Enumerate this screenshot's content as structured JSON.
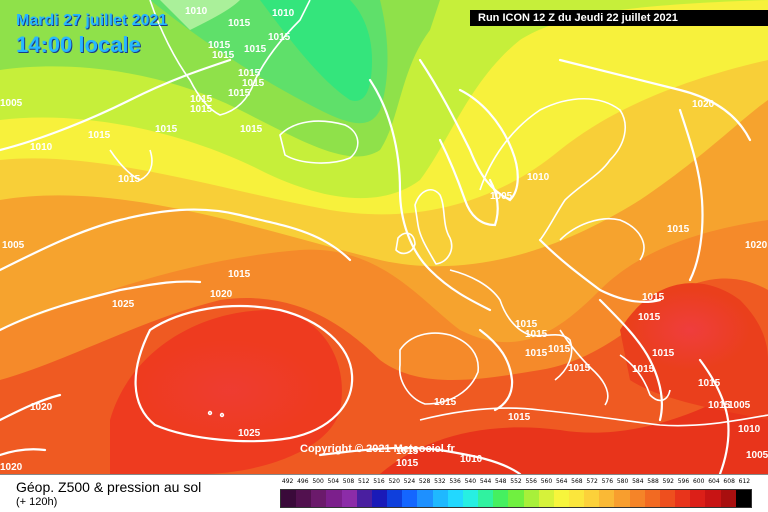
{
  "title": {
    "date": "Mardi 27 juillet 2021",
    "time": "14:00 locale"
  },
  "run_info": "Run ICON 12 Z du Jeudi 22 juillet 2021",
  "copyright": "Copyright © 2021 Meteociel.fr",
  "footer": {
    "title": "Géop. Z500 & pression au sol",
    "subtitle": "(+ 120h)"
  },
  "legend_scale": {
    "labels": [
      "492",
      "496",
      "500",
      "504",
      "508",
      "512",
      "516",
      "520",
      "524",
      "528",
      "532",
      "536",
      "540",
      "544",
      "548",
      "552",
      "556",
      "560",
      "564",
      "568",
      "572",
      "576",
      "580",
      "584",
      "588",
      "592",
      "596",
      "600",
      "604",
      "608",
      "612"
    ],
    "colors": [
      "#3a0a3a",
      "#52114f",
      "#6b1a6b",
      "#7c1f8c",
      "#8c2ca8",
      "#4a1fa0",
      "#1a1ab8",
      "#0f3fdc",
      "#1466ff",
      "#1e90ff",
      "#1fb8ff",
      "#22d8ff",
      "#27efe2",
      "#30f2a0",
      "#45f060",
      "#70f040",
      "#a8f03a",
      "#d6f23a",
      "#f7f53c",
      "#fbe63c",
      "#fcd13a",
      "#fab935",
      "#f89e2e",
      "#f58428",
      "#f26a22",
      "#ee4f1e",
      "#e8341b",
      "#dc1f18",
      "#c81414",
      "#a80f0f",
      "#000000"
    ]
  },
  "isobar_labels": [
    "1010",
    "1015",
    "1010",
    "1015",
    "1015",
    "1015",
    "1015",
    "1015",
    "1015",
    "1015",
    "1015",
    "1015",
    "1005",
    "1015",
    "1015",
    "1010",
    "1015",
    "1015",
    "1010",
    "1005",
    "1020",
    "1015",
    "1005",
    "1015",
    "1020",
    "1025",
    "1015",
    "1015",
    "1015",
    "1015",
    "1015",
    "1015",
    "1020",
    "1015",
    "1015",
    "1015",
    "1015",
    "1015",
    "1020",
    "1025",
    "1015",
    "1015",
    "1010",
    "1015",
    "1005",
    "1010",
    "1005",
    "1020",
    "1015"
  ]
}
